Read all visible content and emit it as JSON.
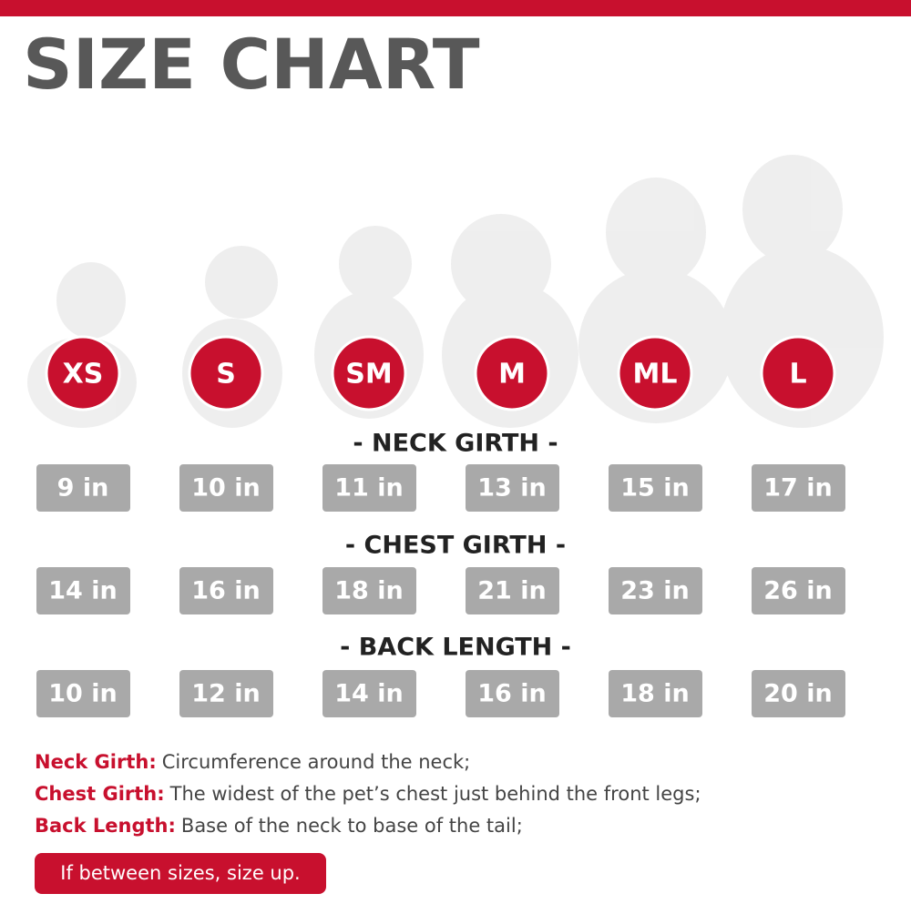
{
  "header": {
    "title": "SIZE CHART"
  },
  "sizes": [
    "XS",
    "S",
    "SM",
    "M",
    "ML",
    "L"
  ],
  "measurements": [
    {
      "title": "- NECK GIRTH -",
      "values": [
        "9 in",
        "10 in",
        "11 in",
        "13 in",
        "15 in",
        "17 in"
      ]
    },
    {
      "title": "- CHEST GIRTH -",
      "values": [
        "14 in",
        "16 in",
        "18 in",
        "21 in",
        "23 in",
        "26 in"
      ]
    },
    {
      "title": "- BACK LENGTH -",
      "values": [
        "10 in",
        "12 in",
        "14 in",
        "16 in",
        "18 in",
        "20 in"
      ]
    }
  ],
  "definitions": [
    {
      "term": "Neck Girth:",
      "text": "Circumference around the neck;"
    },
    {
      "term": "Chest Girth:",
      "text": "The widest of the pet’s chest just behind the front legs;"
    },
    {
      "term": "Back Length:",
      "text": "Base of the neck to base of the tail;"
    }
  ],
  "note": "If between sizes, size up."
}
